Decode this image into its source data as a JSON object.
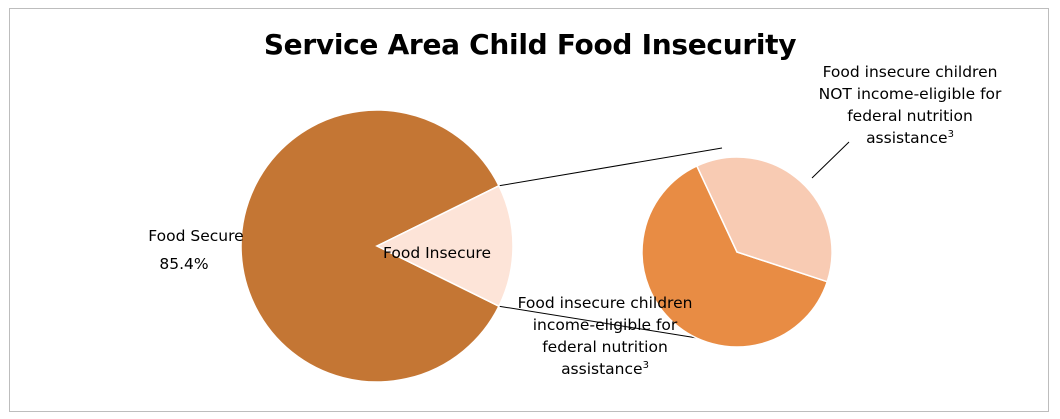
{
  "chart_data": {
    "type": "pie",
    "title": "Service Area Child Food Insecurity",
    "main_pie": {
      "slices": [
        {
          "label": "Food Secure",
          "value": 85.4,
          "value_label": "85.4%",
          "color": "#C47634"
        },
        {
          "label": "Food Insecure",
          "value": 14.6,
          "color": "#FDE4D8"
        }
      ]
    },
    "breakout_pie": {
      "parent_slice": "Food Insecure",
      "slices": [
        {
          "label_lines": [
            "Food insecure children",
            "NOT income-eligible for",
            "federal nutrition",
            "assistance"
          ],
          "superscript": "3",
          "value": 37,
          "color": "#F8CBB3"
        },
        {
          "label_lines": [
            "Food insecure children",
            "income-eligible for",
            "federal nutrition",
            "assistance"
          ],
          "superscript": "3",
          "value": 63,
          "color": "#E88C44"
        }
      ]
    }
  }
}
